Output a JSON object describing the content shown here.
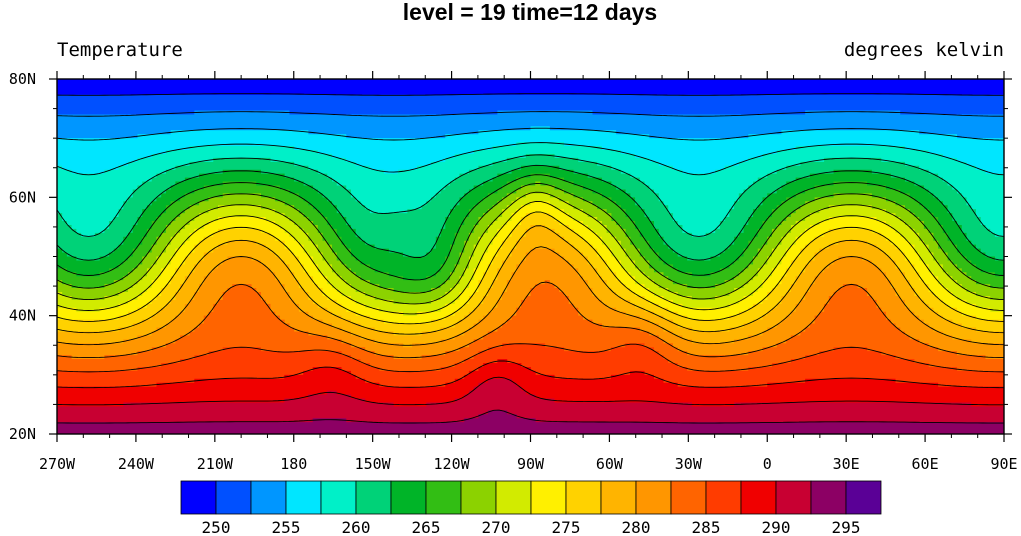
{
  "chart_data": {
    "type": "heatmap",
    "title": "level = 19 time=12 days",
    "left_string": "Temperature",
    "right_string": "degrees kelvin",
    "x_ticks": [
      "270W",
      "240W",
      "210W",
      "180",
      "150W",
      "120W",
      "90W",
      "60W",
      "30W",
      "0",
      "30E",
      "60E",
      "90E"
    ],
    "x_range": [
      -270,
      90
    ],
    "y_ticks": [
      "20N",
      "40N",
      "60N",
      "80N"
    ],
    "y_range": [
      20,
      80
    ],
    "contour_levels": [
      248,
      250,
      252.5,
      255,
      257.5,
      260,
      262.5,
      265,
      267.5,
      270,
      272.5,
      275,
      277.5,
      280,
      282.5,
      285,
      287.5,
      290,
      292.5,
      295,
      297.5
    ],
    "colorbar_labels": [
      "250",
      "255",
      "260",
      "265",
      "270",
      "275",
      "280",
      "285",
      "290",
      "295"
    ],
    "colors": [
      "#0000ff",
      "#0050ff",
      "#0096ff",
      "#00e6ff",
      "#00f0c8",
      "#00d278",
      "#00b428",
      "#32be14",
      "#8cd200",
      "#d2eb00",
      "#fff000",
      "#ffd200",
      "#ffb400",
      "#ff9600",
      "#ff6400",
      "#ff3c00",
      "#f00000",
      "#c80032",
      "#8c0064",
      "#5a0096"
    ],
    "grid": false,
    "legend": "bottom"
  }
}
